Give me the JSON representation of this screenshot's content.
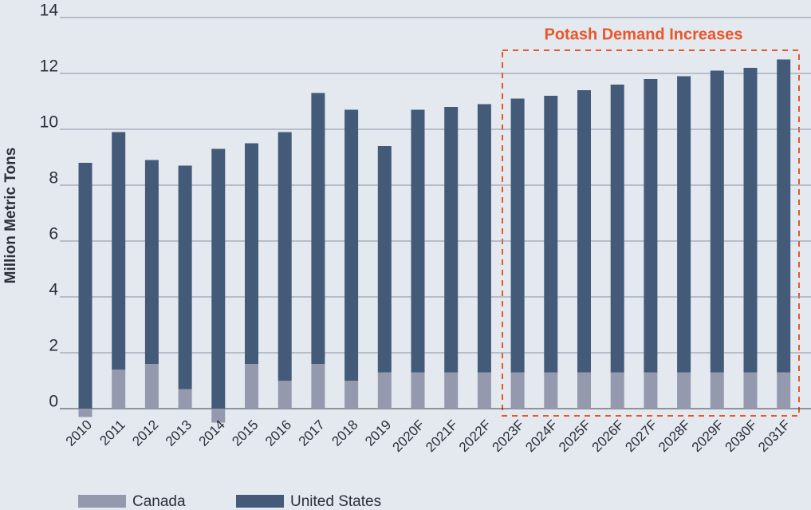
{
  "chart_data": {
    "type": "stacked_bar",
    "y_label": "Million Metric Tons",
    "annotation": "Potash Demand Increases",
    "categories": [
      "2010",
      "2011",
      "2012",
      "2013",
      "2014",
      "2015",
      "2016",
      "2017",
      "2018",
      "2019",
      "2020F",
      "2021F",
      "2022F",
      "2023F",
      "2024F",
      "2025F",
      "2026F",
      "2027F",
      "2028F",
      "2029F",
      "2030F",
      "2031F"
    ],
    "series": [
      {
        "name": "Canada",
        "color": "#9499ae",
        "values": [
          -0.3,
          1.4,
          1.6,
          0.7,
          -0.5,
          1.6,
          1.0,
          1.6,
          1.0,
          1.3,
          1.3,
          1.3,
          1.3,
          1.3,
          1.3,
          1.3,
          1.3,
          1.3,
          1.3,
          1.3,
          1.3,
          1.3
        ]
      },
      {
        "name": "United States",
        "color": "#435a78",
        "values": [
          8.8,
          8.5,
          7.3,
          8.0,
          9.3,
          7.9,
          8.9,
          9.7,
          9.7,
          8.1,
          9.4,
          9.5,
          9.6,
          9.8,
          9.9,
          10.1,
          10.3,
          10.5,
          10.6,
          10.8,
          10.9,
          11.2
        ]
      }
    ],
    "ylim": [
      0,
      14
    ],
    "yticks": [
      0,
      2,
      4,
      6,
      8,
      10,
      12,
      14
    ],
    "grid": true,
    "legend": "bottom"
  }
}
